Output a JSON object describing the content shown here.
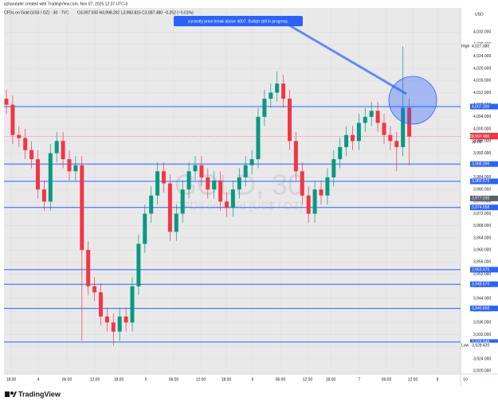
{
  "header": {
    "credit": "azharutahir created with TradingView.com, Nov 07, 2025 12:37 UTC-5",
    "symbol": "CFDs on Gold (US$ / OZ) · 30 · TVC",
    "ohlc": "O3,997.930 H3,998.282 L3,993.815 C3,997.480 −0.252 (−0.01%)",
    "currency": "USD"
  },
  "chart_data": {
    "type": "candlestick",
    "watermark": "GOLD, 30",
    "watermark_sub": "CFDs on Gold (US$ / OZ)",
    "annotation": "currently price break above 4007. Bullish still in progress.",
    "up_color": "#089981",
    "down_color": "#f23645",
    "level_color": "#2962ff",
    "grid": true,
    "ylim": [
      3919,
      4040
    ],
    "yticks": [
      {
        "value": 4032,
        "label": "4,032.000"
      },
      {
        "value": 4028,
        "label": "4,028.000"
      },
      {
        "value": 4024,
        "label": "4,024.000"
      },
      {
        "value": 4020,
        "label": "4,020.000"
      },
      {
        "value": 4016,
        "label": "4,016.000"
      },
      {
        "value": 4012,
        "label": "4,012.000"
      },
      {
        "value": 4008,
        "label": "4,008.000"
      },
      {
        "value": 4004,
        "label": "4,004.000"
      },
      {
        "value": 4000,
        "label": "4,000.000"
      },
      {
        "value": 3996,
        "label": "3,996.000"
      },
      {
        "value": 3992,
        "label": "3,992.000"
      },
      {
        "value": 3988,
        "label": "3,988.000"
      },
      {
        "value": 3984,
        "label": "3,984.000"
      },
      {
        "value": 3980,
        "label": "3,980.000"
      },
      {
        "value": 3976,
        "label": "3,976.000"
      },
      {
        "value": 3972,
        "label": "3,972.000"
      },
      {
        "value": 3968,
        "label": "3,968.000"
      },
      {
        "value": 3964,
        "label": "3,964.000"
      },
      {
        "value": 3960,
        "label": "3,960.000"
      },
      {
        "value": 3956,
        "label": "3,956.000"
      },
      {
        "value": 3952,
        "label": "3,952.000"
      },
      {
        "value": 3948,
        "label": "3,948.000"
      },
      {
        "value": 3944,
        "label": "3,944.000"
      },
      {
        "value": 3940,
        "label": "3,940.000"
      },
      {
        "value": 3936,
        "label": "3,936.000"
      },
      {
        "value": 3932,
        "label": "3,932.000"
      },
      {
        "value": 3928,
        "label": "3,928.000"
      },
      {
        "value": 3924,
        "label": "3,924.000"
      },
      {
        "value": 3920,
        "label": "3,920.000"
      }
    ],
    "xtick_labels": [
      "18:00",
      "4",
      "06:00",
      "12:00",
      "18:00",
      "5",
      "06:00",
      "12:00",
      "18:00",
      "6",
      "06:00",
      "12:00",
      "18:00",
      "7",
      "06:00",
      "12:00",
      "9",
      "10"
    ],
    "levels": [
      {
        "value": 4007.396,
        "label": "4,007.396"
      },
      {
        "value": 3988.396,
        "label": "3,988.396"
      },
      {
        "value": 3982.679,
        "label": "3,982.679"
      },
      {
        "value": 3974.058,
        "label": "3,974.058"
      },
      {
        "value": 3953.476,
        "label": "3,953.476"
      },
      {
        "value": 3948.67,
        "label": "3,948.670"
      },
      {
        "value": 3940.668,
        "label": "3,940.668"
      },
      {
        "value": 3929.548,
        "label": "3,929.548"
      }
    ],
    "markers": [
      {
        "name": "High",
        "value": 4027.38,
        "label": "4,027.380"
      },
      {
        "name": "Ask",
        "value": 3997.788,
        "label": "3,997.788"
      },
      {
        "name": "Bid",
        "value": 3997.568,
        "label": "3,997.568"
      },
      {
        "name": "GOLD",
        "value": 3997.48,
        "label": "3,997.480"
      },
      {
        "name": "Low",
        "value": 3928.42,
        "label": "3,928.420"
      }
    ],
    "countdown": "32:09",
    "mid_label": {
      "value": 3977.03,
      "label": "3,977.030"
    },
    "open": [
      4010,
      4008,
      3998,
      3997,
      3993,
      3990,
      3980,
      3976,
      3992,
      3996,
      3990,
      3986,
      3988,
      3960,
      3948,
      3946,
      3938,
      3936,
      3933,
      3938,
      3936,
      3948,
      3962,
      3972,
      3978,
      3986,
      3982,
      3966,
      3972,
      3980,
      3986,
      3988,
      3984,
      3980,
      3983,
      3976,
      3974,
      3980,
      3984,
      3988,
      3990,
      4004,
      4010,
      4012,
      4015,
      4010,
      3996,
      3986,
      3978,
      3972,
      3980,
      3978,
      3984,
      3990,
      3994,
      3998,
      3996,
      4002,
      4004,
      4006,
      4002,
      3998,
      3996,
      3994,
      4007
    ],
    "high": [
      4013,
      4011,
      4001,
      4000,
      3996,
      3993,
      3983,
      3995,
      3999,
      3999,
      3993,
      3991,
      3991,
      3963,
      3951,
      3949,
      3941,
      3939,
      3941,
      3941,
      3951,
      3965,
      3975,
      3981,
      3989,
      3989,
      3985,
      3975,
      3983,
      3989,
      3991,
      3991,
      3987,
      3986,
      3986,
      3979,
      3983,
      3987,
      3991,
      3993,
      4007,
      4013,
      4015,
      4019,
      4018,
      4013,
      3999,
      3989,
      3981,
      3983,
      3983,
      3987,
      3993,
      3997,
      4001,
      4001,
      4005,
      4007,
      4009,
      4009,
      4005,
      4001,
      3999,
      4027.38,
      4010
    ],
    "low": [
      4005,
      3995,
      3994,
      3990,
      3987,
      3977,
      3973,
      3973,
      3989,
      3987,
      3983,
      3983,
      3930,
      3945,
      3943,
      3935,
      3933,
      3928.42,
      3930,
      3933,
      3933,
      3945,
      3959,
      3969,
      3975,
      3979,
      3963,
      3963,
      3969,
      3977,
      3983,
      3981,
      3977,
      3977,
      3973,
      3971,
      3971,
      3977,
      3981,
      3985,
      3987,
      4001,
      4007,
      4009,
      4007,
      3993,
      3983,
      3975,
      3969,
      3969,
      3975,
      3975,
      3981,
      3987,
      3991,
      3993,
      3993,
      3999,
      4001,
      3999,
      3995,
      3993,
      3986,
      3991,
      3988
    ],
    "close": [
      4008,
      3998,
      3997,
      3993,
      3990,
      3980,
      3976,
      3992,
      3996,
      3990,
      3986,
      3988,
      3960,
      3948,
      3946,
      3938,
      3936,
      3933,
      3938,
      3936,
      3948,
      3962,
      3972,
      3978,
      3986,
      3982,
      3966,
      3972,
      3980,
      3986,
      3988,
      3984,
      3980,
      3983,
      3976,
      3974,
      3980,
      3984,
      3988,
      3990,
      4004,
      4010,
      4012,
      4015,
      4010,
      3996,
      3986,
      3978,
      3972,
      3980,
      3978,
      3984,
      3990,
      3994,
      3998,
      3996,
      4002,
      4004,
      4006,
      4002,
      3998,
      3996,
      3994,
      4007,
      3997.48
    ]
  },
  "footer": {
    "brand": "TradingView"
  }
}
